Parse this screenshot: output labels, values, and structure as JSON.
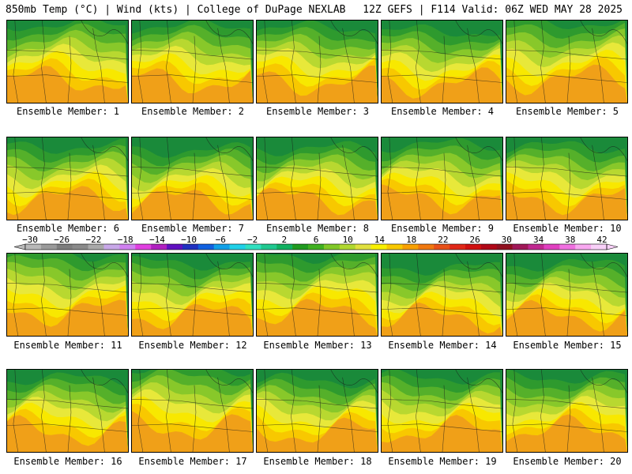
{
  "header": {
    "left": "850mb Temp (°C) | Wind (kts) | College of DuPage NEXLAB",
    "right": "12Z GEFS | F114 Valid: 06Z WED MAY 28 2025"
  },
  "members": [
    {
      "label": "Ensemble Member: 1",
      "warm": 0.55
    },
    {
      "label": "Ensemble Member: 2",
      "warm": 0.5
    },
    {
      "label": "Ensemble Member: 3",
      "warm": 0.45
    },
    {
      "label": "Ensemble Member: 4",
      "warm": 0.35
    },
    {
      "label": "Ensemble Member: 5",
      "warm": 0.6
    },
    {
      "label": "Ensemble Member: 6",
      "warm": 0.4
    },
    {
      "label": "Ensemble Member: 7",
      "warm": 0.3
    },
    {
      "label": "Ensemble Member: 8",
      "warm": 0.35
    },
    {
      "label": "Ensemble Member: 9",
      "warm": 0.45
    },
    {
      "label": "Ensemble Member: 10",
      "warm": 0.4
    },
    {
      "label": "Ensemble Member: 11",
      "warm": 0.65
    },
    {
      "label": "Ensemble Member: 12",
      "warm": 0.4
    },
    {
      "label": "Ensemble Member: 13",
      "warm": 0.6
    },
    {
      "label": "Ensemble Member: 14",
      "warm": 0.25
    },
    {
      "label": "Ensemble Member: 15",
      "warm": 0.35
    },
    {
      "label": "Ensemble Member: 16",
      "warm": 0.4
    },
    {
      "label": "Ensemble Member: 17",
      "warm": 0.7
    },
    {
      "label": "Ensemble Member: 18",
      "warm": 0.35
    },
    {
      "label": "Ensemble Member: 19",
      "warm": 0.45
    },
    {
      "label": "Ensemble Member: 20",
      "warm": 0.45
    }
  ],
  "colorbar": {
    "labels": [
      "-30",
      "-26",
      "-22",
      "-18",
      "-14",
      "-10",
      "-6",
      "-2",
      "2",
      "6",
      "10",
      "14",
      "18",
      "22",
      "26",
      "30",
      "34",
      "38",
      "42"
    ],
    "colors": [
      "#b8b8b8",
      "#9a9a9a",
      "#7d7d7d",
      "#8a8a8a",
      "#a9a9a9",
      "#c8a8e8",
      "#d080f0",
      "#e040e0",
      "#b020c0",
      "#6010c0",
      "#2030c0",
      "#1060e0",
      "#10a0e8",
      "#20d0e8",
      "#30e0c0",
      "#20c890",
      "#10b060",
      "#209a20",
      "#40b020",
      "#80c828",
      "#b0d830",
      "#e0e040",
      "#f8f000",
      "#f8c800",
      "#f8a000",
      "#f07810",
      "#e85018",
      "#e02818",
      "#d01010",
      "#b00818",
      "#901020",
      "#a01858",
      "#c02890",
      "#e040c0",
      "#f070e0",
      "#f8a8f0",
      "#f8d0f8"
    ]
  }
}
